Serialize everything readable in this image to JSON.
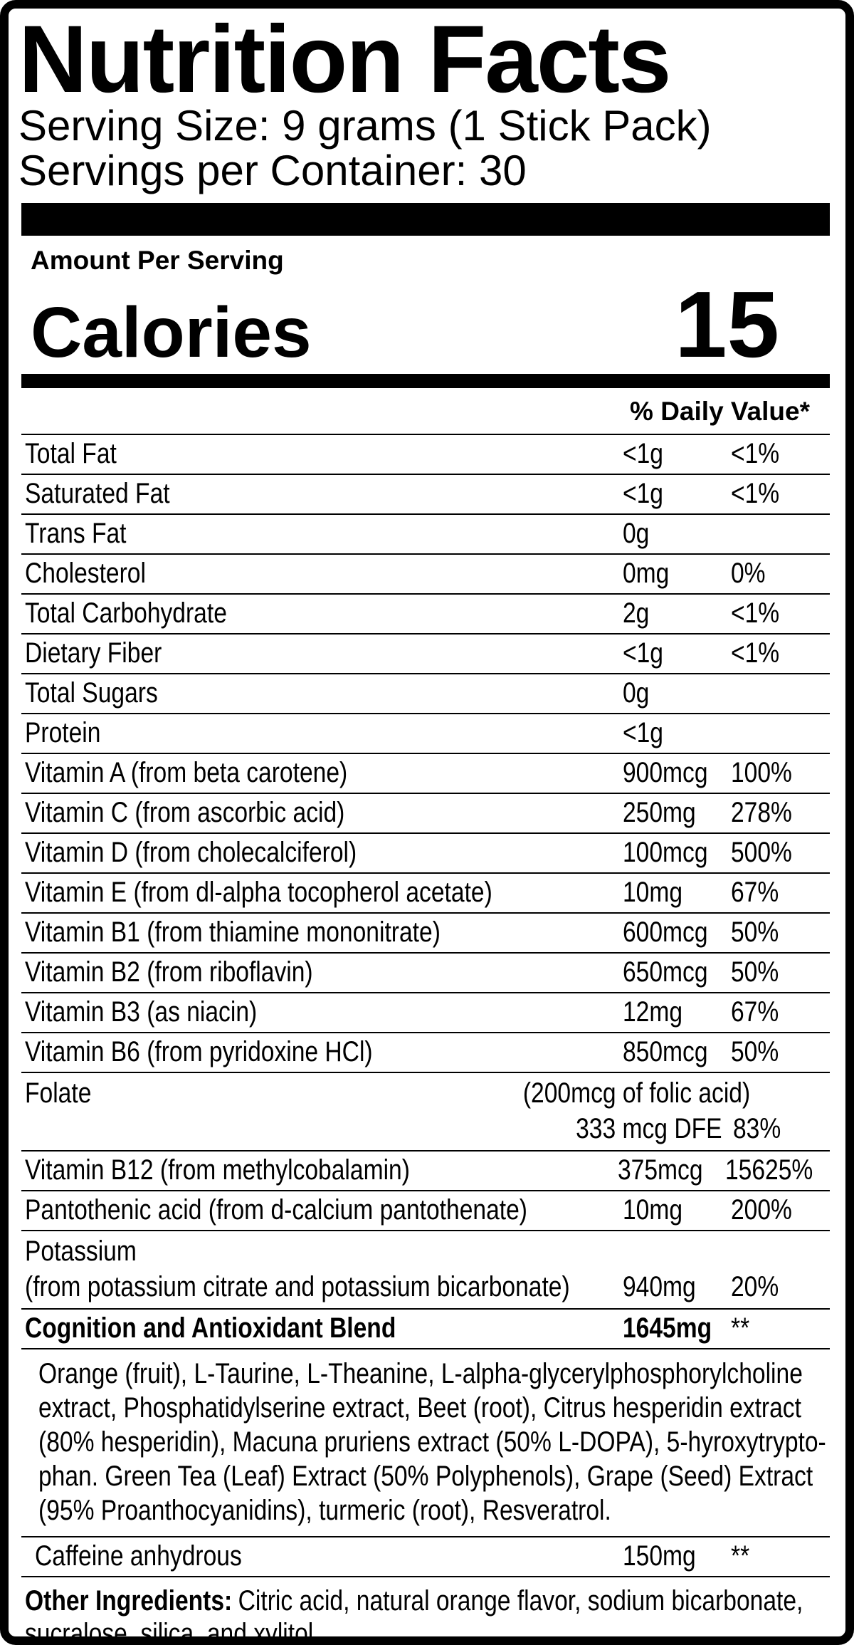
{
  "label": {
    "title": "Nutrition Facts",
    "serving_size": "Serving Size: 9 grams (1 Stick Pack)",
    "servings_per_container": "Servings per Container: 30",
    "amount_per_serving": "Amount Per Serving",
    "calories": {
      "label": "Calories",
      "value": "15"
    },
    "daily_value_header": "% Daily Value*",
    "colors": {
      "ink": "#000000",
      "paper": "#ffffff"
    },
    "nutrients": [
      {
        "name": "Total Fat",
        "amount": "<1g",
        "dv": "<1%"
      },
      {
        "name": "Saturated Fat",
        "amount": "<1g",
        "dv": "<1%"
      },
      {
        "name": "Trans Fat",
        "amount": "0g",
        "dv": ""
      },
      {
        "name": "Cholesterol",
        "amount": "0mg",
        "dv": "0%"
      },
      {
        "name": "Total Carbohydrate",
        "amount": "2g",
        "dv": "<1%"
      },
      {
        "name": "Dietary Fiber",
        "amount": "<1g",
        "dv": "<1%"
      },
      {
        "name": "Total Sugars",
        "amount": "0g",
        "dv": ""
      },
      {
        "name": "Protein",
        "amount": "<1g",
        "dv": ""
      },
      {
        "name": "Vitamin A (from beta carotene)",
        "amount": "900mcg",
        "dv": "100%"
      },
      {
        "name": "Vitamin C (from ascorbic acid)",
        "amount": "250mg",
        "dv": "278%"
      },
      {
        "name": "Vitamin D (from cholecalciferol)",
        "amount": "100mcg",
        "dv": "500%"
      },
      {
        "name": "Vitamin E (from dl-alpha tocopherol acetate)",
        "amount": "10mg",
        "dv": "67%"
      },
      {
        "name": "Vitamin B1 (from thiamine mononitrate)",
        "amount": "600mcg",
        "dv": "50%"
      },
      {
        "name": "Vitamin B2 (from riboflavin)",
        "amount": "650mcg",
        "dv": "50%"
      },
      {
        "name": "Vitamin B3 (as niacin)",
        "amount": "12mg",
        "dv": "67%"
      },
      {
        "name": "Vitamin B6 (from pyridoxine HCl)",
        "amount": "850mcg",
        "dv": "50%"
      },
      {
        "type": "folate",
        "name": "Folate",
        "note": "(200mcg of folic acid)",
        "amount": "333 mcg DFE",
        "dv": "83%"
      },
      {
        "name": "Vitamin B12 (from methylcobalamin)",
        "amount": "375mcg",
        "dv": "15625%"
      },
      {
        "name": "Pantothenic acid (from d-calcium pantothenate)",
        "amount": "10mg",
        "dv": "200%"
      },
      {
        "type": "twoline",
        "name": "Potassium",
        "note": "(from potassium citrate and potassium bicarbonate)",
        "amount": "940mg",
        "dv": "20%"
      },
      {
        "name": "Cognition and Antioxidant Blend",
        "amount": "1645mg",
        "dv": "**",
        "bold": true
      },
      {
        "type": "paragraph",
        "lines": [
          "Orange (fruit), L-Taurine, L-Theanine, L-alpha-glycerylphosphorylcholine",
          "extract, Phosphatidylserine extract, Beet (root), Citrus hesperidin extract",
          "(80% hesperidin), Macuna pruriens extract (50% L-DOPA), 5-hyroxytrypto-",
          "phan. Green Tea (Leaf) Extract (50% Polyphenols), Grape (Seed) Extract",
          "(95% Proanthocyanidins), turmeric (root), Resveratrol."
        ]
      },
      {
        "name": "Caffeine anhydrous",
        "amount": "150mg",
        "dv": "**",
        "indent": true
      }
    ],
    "other_ingredients": {
      "label": "Other Ingredients:",
      "text": "Citric acid, natural orange flavor, sodium bicarbonate, sucralose, silica, and xylitol."
    }
  }
}
